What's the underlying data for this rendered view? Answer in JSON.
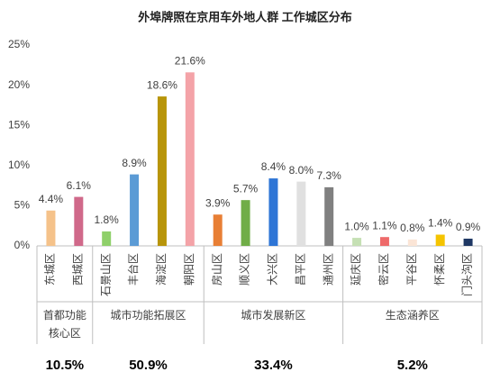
{
  "chart_data": {
    "type": "bar",
    "title": "外埠牌照在京用车外地人群   工作城区分布",
    "categories": [
      "东城区",
      "西城区",
      "石景山区",
      "丰台区",
      "海淀区",
      "朝阳区",
      "房山区",
      "顺义区",
      "大兴区",
      "昌平区",
      "通州区",
      "延庆区",
      "密云区",
      "平谷区",
      "怀柔区",
      "门头沟区"
    ],
    "values": [
      4.4,
      6.1,
      1.8,
      8.9,
      18.6,
      21.6,
      3.9,
      5.7,
      8.4,
      8.0,
      7.3,
      1.0,
      1.1,
      0.8,
      1.4,
      0.9
    ],
    "value_labels": [
      "4.4%",
      "6.1%",
      "1.8%",
      "8.9%",
      "18.6%",
      "21.6%",
      "3.9%",
      "5.7%",
      "8.4%",
      "8.0%",
      "7.3%",
      "1.0%",
      "1.1%",
      "0.8%",
      "1.4%",
      "0.9%"
    ],
    "colors": [
      "#f5c28a",
      "#d0698a",
      "#8fd06a",
      "#5b9bd5",
      "#b8950a",
      "#f4a3a8",
      "#e87f35",
      "#70ad47",
      "#2e75d6",
      "#e0e0e0",
      "#808080",
      "#c5e0b4",
      "#ee6a6a",
      "#fbe5d6",
      "#f5c400",
      "#1f3864"
    ],
    "ylim": [
      0,
      25
    ],
    "yticks": [
      {
        "value": 0,
        "label": "0%"
      },
      {
        "value": 5,
        "label": "5%"
      },
      {
        "value": 10,
        "label": "10%"
      },
      {
        "value": 15,
        "label": "15%"
      },
      {
        "value": 20,
        "label": "20%"
      },
      {
        "value": 25,
        "label": "25%"
      }
    ],
    "grid": false,
    "groups": [
      {
        "name": "首都功能核心区",
        "share": "10.5%"
      },
      {
        "name": "城市功能拓展区",
        "share": "50.9%"
      },
      {
        "name": "城市发展新区",
        "share": "33.4%"
      },
      {
        "name": "生态涵养区",
        "share": "5.2%"
      }
    ]
  }
}
